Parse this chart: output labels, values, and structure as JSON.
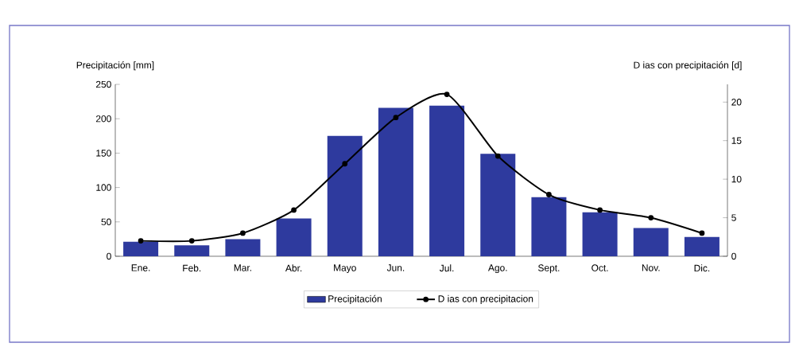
{
  "chart_data": {
    "type": "bar",
    "ylabel": "Precipitación [mm]",
    "y2label": "D ias con precipitación [d]",
    "categories": [
      "Ene.",
      "Feb.",
      "Mar.",
      "Abr.",
      "Mayo",
      "Jun.",
      "Jul.",
      "Ago.",
      "Sept.",
      "Oct.",
      "Nov.",
      "Dic."
    ],
    "series": [
      {
        "name": "Precipitación",
        "color": "#2e3a9e",
        "values": [
          21,
          16,
          25,
          55,
          175,
          216,
          219,
          149,
          86,
          64,
          41,
          28
        ]
      },
      {
        "name": "D ias con precipitacion",
        "type": "line",
        "axis": "y2",
        "color": "#000000",
        "marker": "circle",
        "values": [
          2,
          2,
          3,
          6,
          12,
          18,
          21,
          13,
          8,
          6,
          5,
          3
        ]
      }
    ],
    "ylim": [
      0,
      250
    ],
    "yticks": [
      0,
      50,
      100,
      150,
      200,
      250
    ],
    "y2lim": [
      0,
      22.3
    ],
    "y2ticks": [
      0,
      5,
      10,
      15,
      20
    ],
    "grid": false,
    "legend": "bottom"
  }
}
